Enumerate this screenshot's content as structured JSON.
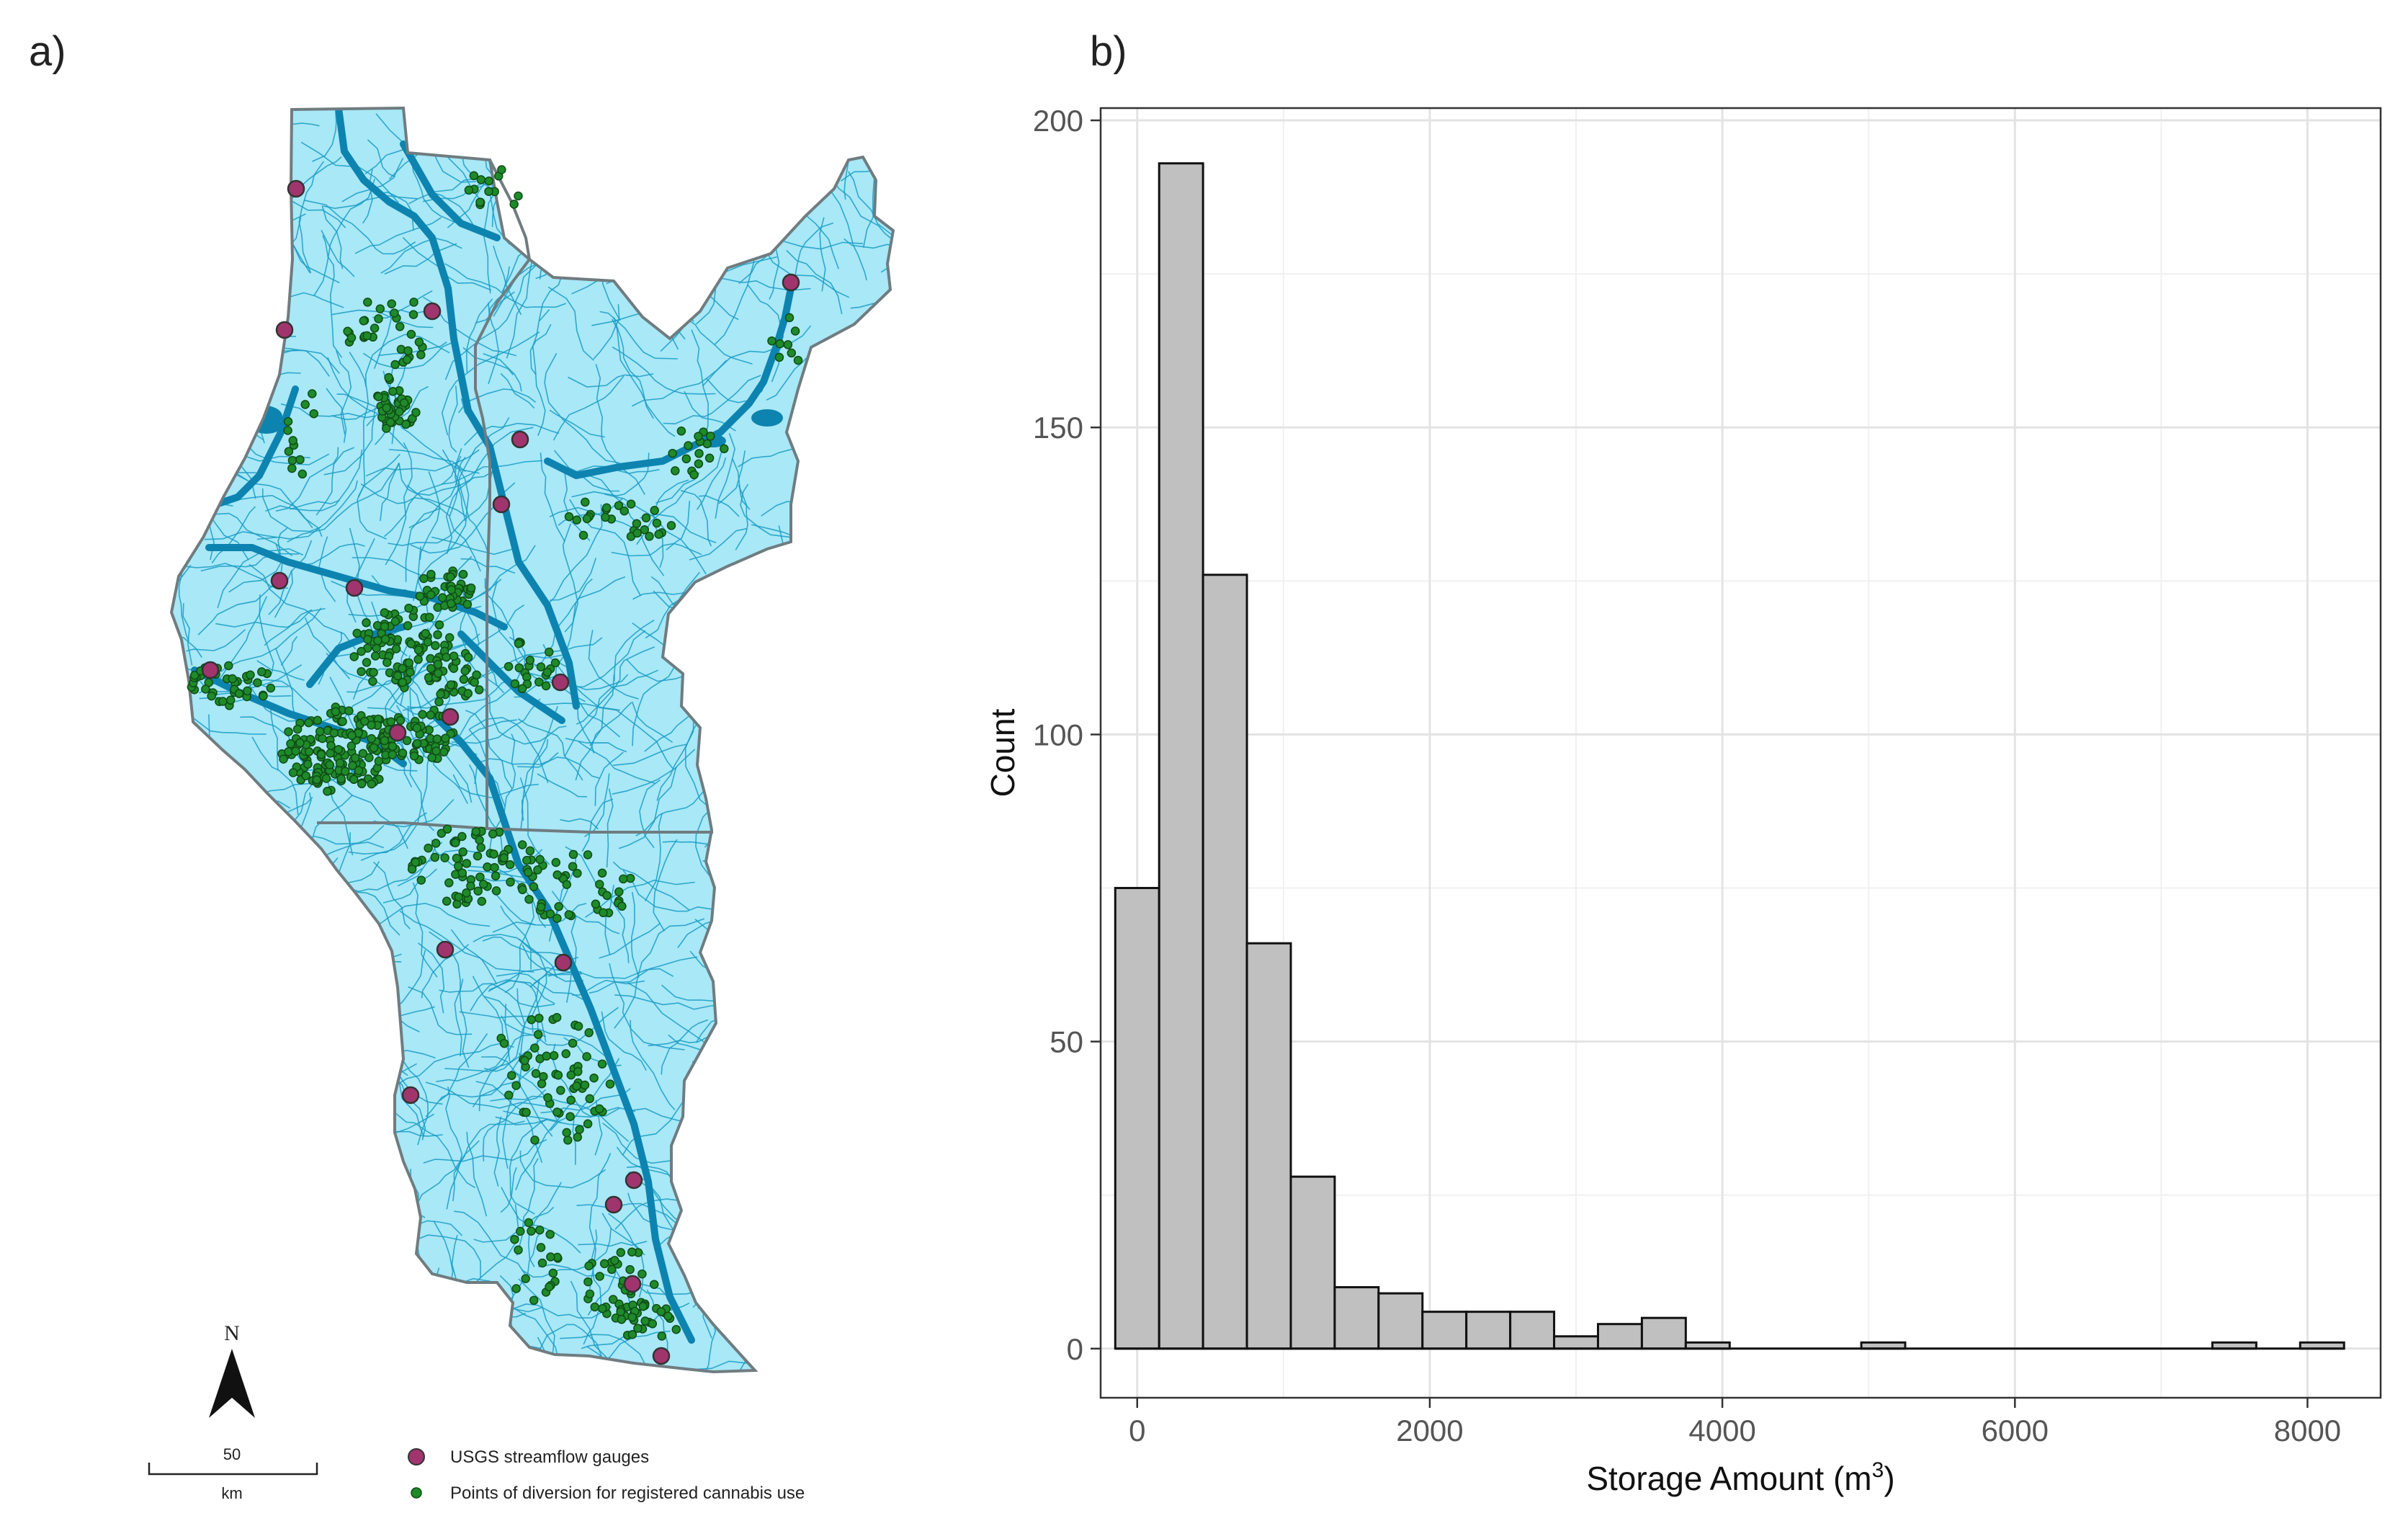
{
  "panels": {
    "a_label": "a)",
    "b_label": "b)"
  },
  "map": {
    "north_label": "N",
    "scale_value": "50",
    "scale_unit": "km",
    "legend": [
      {
        "label": "USGS streamflow gauges",
        "color": "#a0356e"
      },
      {
        "label": "Points of diversion for registered cannabis use",
        "color": "#1f8a2a"
      }
    ],
    "colors": {
      "land_fill": "#a8e8f7",
      "outline": "#6f7c80",
      "streams": "#1a9bc4",
      "major_rivers": "#0d83b0"
    },
    "gauges": [
      [
        411,
        262
      ],
      [
        395,
        458
      ],
      [
        600,
        432
      ],
      [
        722,
        610
      ],
      [
        696,
        700
      ],
      [
        388,
        806
      ],
      [
        492,
        816
      ],
      [
        292,
        930
      ],
      [
        778,
        947
      ],
      [
        552,
        1017
      ],
      [
        625,
        995
      ],
      [
        1098,
        392
      ],
      [
        618,
        1318
      ],
      [
        782,
        1336
      ],
      [
        570,
        1520
      ],
      [
        852,
        1672
      ],
      [
        880,
        1638
      ],
      [
        878,
        1782
      ],
      [
        918,
        1882
      ]
    ]
  },
  "chart_data": {
    "type": "bar",
    "subtype": "histogram",
    "xlabel": "Storage Amount (m",
    "xlabel_sup": "3",
    "xlabel_end": ")",
    "ylabel": "Count",
    "x_ticks": [
      0,
      2000,
      4000,
      6000,
      8000
    ],
    "y_ticks": [
      0,
      50,
      100,
      150,
      200
    ],
    "xlim": [
      -250,
      8500
    ],
    "ylim": [
      -8,
      202
    ],
    "bin_width": 300,
    "bins": [
      {
        "start": -150,
        "count": 75
      },
      {
        "start": 150,
        "count": 193
      },
      {
        "start": 450,
        "count": 126
      },
      {
        "start": 750,
        "count": 66
      },
      {
        "start": 1050,
        "count": 28
      },
      {
        "start": 1350,
        "count": 10
      },
      {
        "start": 1650,
        "count": 9
      },
      {
        "start": 1950,
        "count": 6
      },
      {
        "start": 2250,
        "count": 6
      },
      {
        "start": 2550,
        "count": 6
      },
      {
        "start": 2850,
        "count": 2
      },
      {
        "start": 3150,
        "count": 4
      },
      {
        "start": 3450,
        "count": 5
      },
      {
        "start": 3750,
        "count": 1
      },
      {
        "start": 4050,
        "count": 0
      },
      {
        "start": 4350,
        "count": 0
      },
      {
        "start": 4650,
        "count": 0
      },
      {
        "start": 4950,
        "count": 1
      },
      {
        "start": 5250,
        "count": 0
      },
      {
        "start": 5550,
        "count": 0
      },
      {
        "start": 5850,
        "count": 0
      },
      {
        "start": 6150,
        "count": 0
      },
      {
        "start": 6450,
        "count": 0
      },
      {
        "start": 6750,
        "count": 0
      },
      {
        "start": 7050,
        "count": 0
      },
      {
        "start": 7350,
        "count": 1
      },
      {
        "start": 7650,
        "count": 0
      },
      {
        "start": 7950,
        "count": 1
      }
    ],
    "grid": true,
    "bar_fill": "#c0c0c0",
    "bar_stroke": "#111111"
  }
}
